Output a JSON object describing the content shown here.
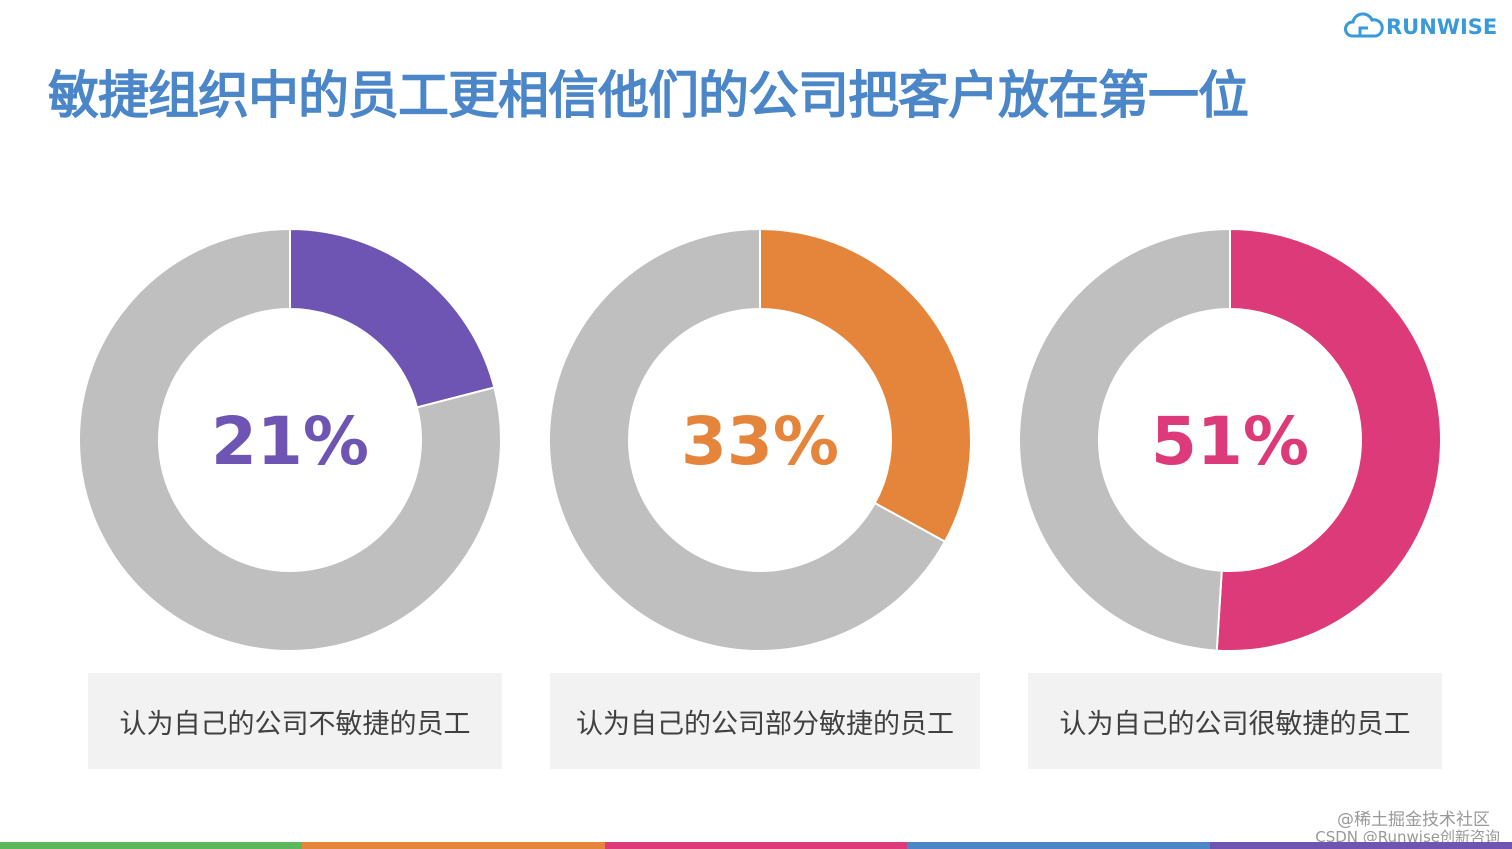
{
  "logo": {
    "text": "RUNWISE",
    "icon": "cloud-logo-icon",
    "color": "#3a9ad9"
  },
  "title": "敏捷组织中的员工更相信他们的公司把客户放在第一位",
  "chart_data": [
    {
      "type": "pie",
      "donut": true,
      "center_label": "21%",
      "caption": "认为自己的公司不敏捷的员工",
      "slices": [
        {
          "value": 21,
          "color": "#6f55b3"
        },
        {
          "value": 79,
          "color": "#bfbfbf"
        }
      ]
    },
    {
      "type": "pie",
      "donut": true,
      "center_label": "33%",
      "caption": "认为自己的公司部分敏捷的员工",
      "slices": [
        {
          "value": 33,
          "color": "#e4853b"
        },
        {
          "value": 67,
          "color": "#bfbfbf"
        }
      ]
    },
    {
      "type": "pie",
      "donut": true,
      "center_label": "51%",
      "caption": "认为自己的公司很敏捷的员工",
      "slices": [
        {
          "value": 51,
          "color": "#dc3a78"
        },
        {
          "value": 49,
          "color": "#bfbfbf"
        }
      ]
    }
  ],
  "watermark": {
    "line1": "@稀土掘金技术社区",
    "line2": "CSDN @Runwise创新咨询"
  },
  "bottom_bar_colors": [
    "#5cb85c",
    "#e4853b",
    "#dc3a78",
    "#4a86c8",
    "#6f55b3"
  ]
}
